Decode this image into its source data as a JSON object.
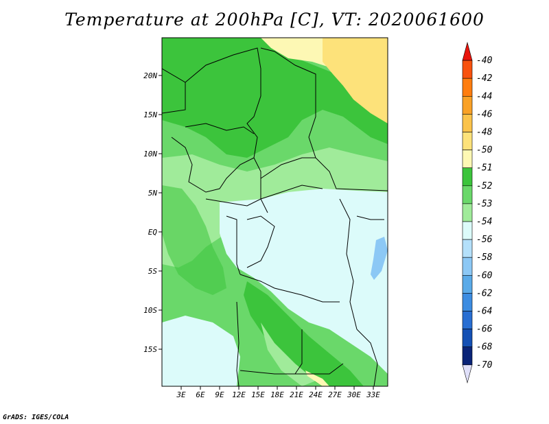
{
  "title": "Temperature at 200hPa [C], VT: 2020061600",
  "credit": "GrADS: IGES/COLA",
  "map": {
    "lat_ticks": [
      "20N",
      "15N",
      "10N",
      "5N",
      "EQ",
      "5S",
      "10S",
      "15S"
    ],
    "lon_ticks": [
      "3E",
      "6E",
      "9E",
      "12E",
      "15E",
      "18E",
      "21E",
      "24E",
      "27E",
      "30E",
      "33E"
    ]
  },
  "legend": {
    "levels": [
      "-40",
      "-42",
      "-44",
      "-46",
      "-48",
      "-50",
      "-51",
      "-52",
      "-53",
      "-54",
      "-56",
      "-58",
      "-60",
      "-62",
      "-64",
      "-66",
      "-68",
      "-70"
    ],
    "colors": [
      "#e8140c",
      "#f8520e",
      "#ff7d0f",
      "#f9a126",
      "#fbc34a",
      "#fde27a",
      "#fdf8b4",
      "#3cc43c",
      "#6ad86a",
      "#a0eb9a",
      "#dcfbfa",
      "#b4e0fa",
      "#8cc8f5",
      "#5aaae8",
      "#3c8ce1",
      "#286ed2",
      "#1450b4",
      "#0a2478",
      "#e0e0fa"
    ]
  }
}
